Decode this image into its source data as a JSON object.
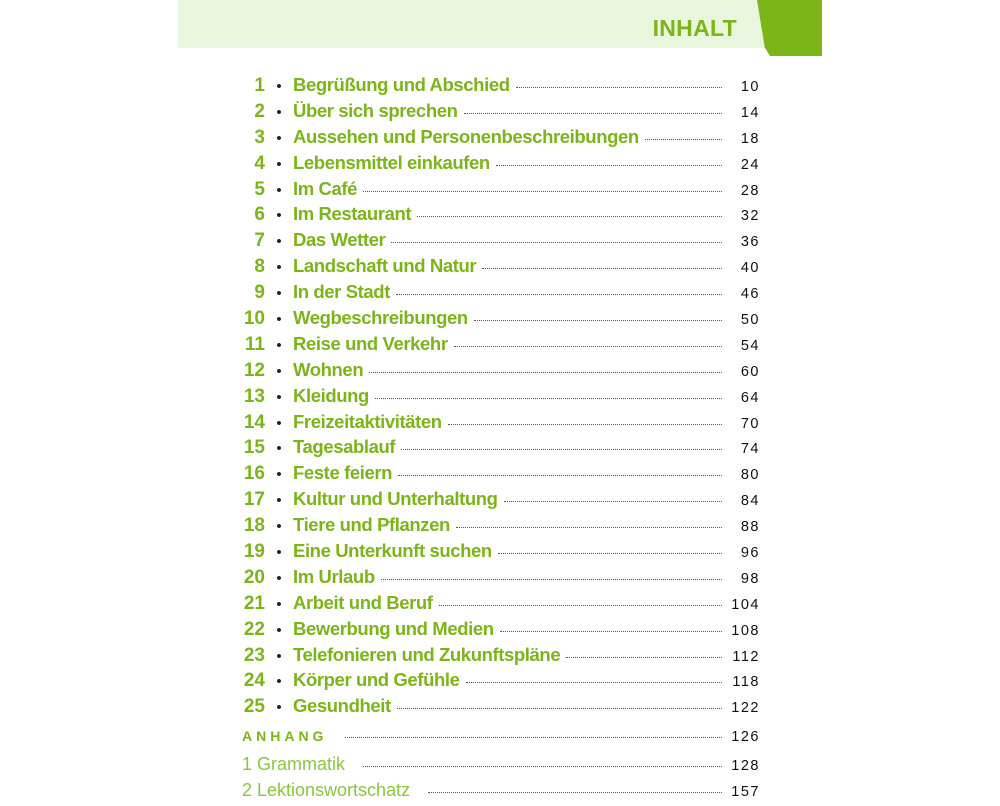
{
  "header": {
    "title": "INHALT",
    "colors": {
      "accent": "#7cb518",
      "band": "#e9f5dd"
    }
  },
  "chapters": [
    {
      "num": "1",
      "title": "Begrüßung und Abschied",
      "page": "10"
    },
    {
      "num": "2",
      "title": "Über sich sprechen",
      "page": "14"
    },
    {
      "num": "3",
      "title": "Aussehen und Personenbeschreibungen",
      "page": "18"
    },
    {
      "num": "4",
      "title": "Lebensmittel einkaufen",
      "page": "24"
    },
    {
      "num": "5",
      "title": "Im Café",
      "page": "28"
    },
    {
      "num": "6",
      "title": "Im Restaurant",
      "page": "32"
    },
    {
      "num": "7",
      "title": "Das Wetter",
      "page": "36"
    },
    {
      "num": "8",
      "title": "Landschaft und Natur",
      "page": "40"
    },
    {
      "num": "9",
      "title": "In der Stadt",
      "page": "46"
    },
    {
      "num": "10",
      "title": "Wegbeschreibungen",
      "page": "50"
    },
    {
      "num": "11",
      "title": "Reise und Verkehr",
      "page": "54"
    },
    {
      "num": "12",
      "title": "Wohnen",
      "page": "60"
    },
    {
      "num": "13",
      "title": "Kleidung",
      "page": "64"
    },
    {
      "num": "14",
      "title": "Freizeitaktivitäten",
      "page": "70"
    },
    {
      "num": "15",
      "title": "Tagesablauf",
      "page": "74"
    },
    {
      "num": "16",
      "title": "Feste feiern",
      "page": "80"
    },
    {
      "num": "17",
      "title": "Kultur und Unterhaltung",
      "page": "84"
    },
    {
      "num": "18",
      "title": "Tiere und Pflanzen",
      "page": "88"
    },
    {
      "num": "19",
      "title": "Eine Unterkunft suchen",
      "page": "96"
    },
    {
      "num": "20",
      "title": "Im Urlaub",
      "page": "98"
    },
    {
      "num": "21",
      "title": "Arbeit und Beruf",
      "page": "104"
    },
    {
      "num": "22",
      "title": "Bewerbung und Medien",
      "page": "108"
    },
    {
      "num": "23",
      "title": "Telefonieren und Zukunftspläne",
      "page": "112"
    },
    {
      "num": "24",
      "title": "Körper und Gefühle",
      "page": "118"
    },
    {
      "num": "25",
      "title": "Gesundheit",
      "page": "122"
    }
  ],
  "appendix": {
    "title": "ANHANG",
    "page": "126",
    "items": [
      {
        "title": "1 Grammatik",
        "page": "128"
      },
      {
        "title": "2 Lektionswortschatz",
        "page": "157"
      }
    ]
  }
}
